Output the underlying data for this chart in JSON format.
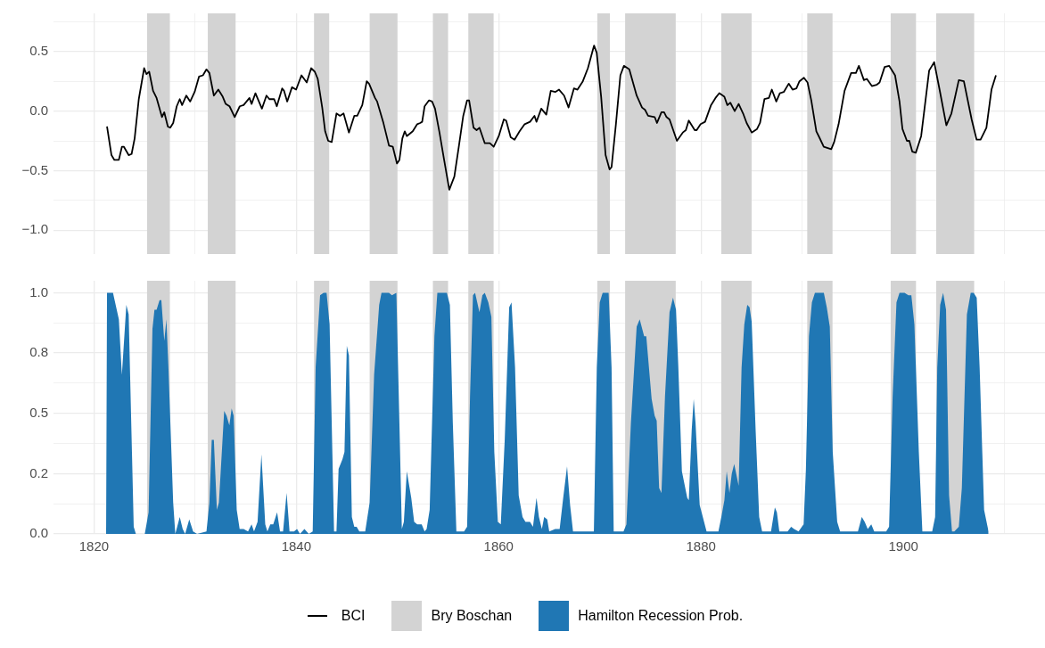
{
  "chart_data": [
    {
      "type": "line",
      "legend": "bottom",
      "grid": true,
      "tick_labels": "y",
      "xlim": [
        1816,
        1914
      ],
      "xticks": [
        1820,
        {
          "value": 1830,
          "label": null
        },
        1840,
        1860,
        1880,
        {
          "value": 1890,
          "label": null
        },
        1900,
        {
          "value": 1910,
          "label": null
        }
      ],
      "ylim": [
        -1.2,
        0.82
      ],
      "yticks": [
        {
          "value": -1.0,
          "label": "−1.0"
        },
        {
          "value": -0.75,
          "label": null
        },
        {
          "value": -0.5,
          "label": "−0.5"
        },
        {
          "value": -0.25,
          "label": null
        },
        {
          "value": 0,
          "label": "0.0"
        },
        {
          "value": 0.25,
          "label": null
        },
        0.5,
        {
          "value": 0.75,
          "label": null
        }
      ],
      "bands": [
        {
          "axis": "x",
          "from": 1825.25,
          "to": 1827.5,
          "label": "Bry Boschan",
          "color": "#d3d3d3"
        },
        {
          "axis": "x",
          "from": 1831.25,
          "to": 1834,
          "color": "#d3d3d3"
        },
        {
          "axis": "x",
          "from": 1841.75,
          "to": 1843.25,
          "color": "#d3d3d3"
        },
        {
          "axis": "x",
          "from": 1847.25,
          "to": 1850,
          "color": "#d3d3d3"
        },
        {
          "axis": "x",
          "from": 1853.5,
          "to": 1855,
          "color": "#d3d3d3"
        },
        {
          "axis": "x",
          "from": 1857,
          "to": 1859.5,
          "color": "#d3d3d3"
        },
        {
          "axis": "x",
          "from": 1869.75,
          "to": 1871,
          "color": "#d3d3d3"
        },
        {
          "axis": "x",
          "from": 1872.5,
          "to": 1877.5,
          "color": "#d3d3d3"
        },
        {
          "axis": "x",
          "from": 1882,
          "to": 1885,
          "color": "#d3d3d3"
        },
        {
          "axis": "x",
          "from": 1890.5,
          "to": 1893,
          "color": "#d3d3d3"
        },
        {
          "axis": "x",
          "from": 1898.75,
          "to": 1901.25,
          "color": "#d3d3d3"
        },
        {
          "axis": "x",
          "from": 1903.25,
          "to": 1907,
          "color": "#d3d3d3"
        }
      ],
      "series": [
        {
          "name": "BCI",
          "color": "#000000",
          "line_style": "solid",
          "x": [
            1821.29,
            1821.73,
            1822.02,
            1822.46,
            1822.76,
            1822.96,
            1823.43,
            1823.72,
            1824.02,
            1824.43,
            1824.96,
            1825.19,
            1825.46,
            1825.84,
            1826.19,
            1826.72,
            1826.95,
            1827.3,
            1827.54,
            1827.83,
            1828.18,
            1828.48,
            1828.71,
            1829.13,
            1829.51,
            1829.95,
            1830.39,
            1830.77,
            1831.12,
            1831.41,
            1831.85,
            1832.29,
            1832.73,
            1833.02,
            1833.4,
            1833.91,
            1834.41,
            1834.79,
            1835.37,
            1835.58,
            1835.96,
            1836.6,
            1837.05,
            1837.34,
            1837.81,
            1838.07,
            1838.6,
            1838.79,
            1839.1,
            1839.57,
            1839.98,
            1840.51,
            1841.03,
            1841.47,
            1841.83,
            1842.12,
            1842.56,
            1842.85,
            1843.15,
            1843.5,
            1843.97,
            1844.32,
            1844.67,
            1845.2,
            1845.73,
            1846.02,
            1846.52,
            1846.96,
            1847.19,
            1847.78,
            1847.99,
            1848.58,
            1849.16,
            1849.54,
            1849.95,
            1850.19,
            1850.48,
            1850.72,
            1850.92,
            1851.51,
            1851.95,
            1852.24,
            1852.44,
            1852.68,
            1853.12,
            1853.42,
            1853.71,
            1854.15,
            1854.59,
            1855.12,
            1855.62,
            1856.06,
            1856.5,
            1856.88,
            1857.08,
            1857.52,
            1857.82,
            1858.1,
            1858.63,
            1859.13,
            1859.51,
            1860.01,
            1860.51,
            1860.74,
            1861.19,
            1861.57,
            1862.07,
            1862.57,
            1863.1,
            1863.54,
            1863.74,
            1864.21,
            1864.71,
            1865.15,
            1865.59,
            1865.97,
            1866.47,
            1866.91,
            1867.44,
            1867.79,
            1868.32,
            1868.82,
            1869.43,
            1869.69,
            1870.13,
            1870.57,
            1870.96,
            1871.16,
            1871.59,
            1872.03,
            1872.38,
            1872.91,
            1873.64,
            1874.17,
            1874.47,
            1874.77,
            1875.42,
            1875.65,
            1876.09,
            1876.35,
            1876.59,
            1876.89,
            1877.62,
            1878.2,
            1878.5,
            1878.79,
            1879.38,
            1879.57,
            1879.96,
            1880.4,
            1880.99,
            1881.43,
            1881.81,
            1882.31,
            1882.6,
            1882.9,
            1883.33,
            1883.72,
            1884.16,
            1884.51,
            1885.01,
            1885.54,
            1885.83,
            1886.27,
            1886.71,
            1887.0,
            1887.44,
            1887.79,
            1888.18,
            1888.67,
            1889.05,
            1889.43,
            1889.73,
            1890.17,
            1890.53,
            1890.9,
            1891.4,
            1891.69,
            1892.13,
            1892.87,
            1893.16,
            1893.6,
            1894.19,
            1894.84,
            1895.31,
            1895.6,
            1896.1,
            1896.39,
            1896.89,
            1897.35,
            1897.65,
            1898.15,
            1898.59,
            1899.18,
            1899.62,
            1899.91,
            1900.35,
            1900.59,
            1900.88,
            1901.23,
            1901.76,
            1902.55,
            1903.05,
            1903.58,
            1904.25,
            1904.75,
            1905.48,
            1905.98,
            1906.75,
            1907.24,
            1907.63,
            1908.21,
            1908.71,
            1909.15
          ],
          "values": [
            -0.13,
            -0.37,
            -0.41,
            -0.41,
            -0.3,
            -0.3,
            -0.37,
            -0.36,
            -0.23,
            0.1,
            0.36,
            0.31,
            0.33,
            0.17,
            0.11,
            -0.05,
            -0.01,
            -0.13,
            -0.14,
            -0.1,
            0.04,
            0.1,
            0.05,
            0.13,
            0.08,
            0.16,
            0.29,
            0.3,
            0.35,
            0.32,
            0.13,
            0.18,
            0.12,
            0.06,
            0.04,
            -0.05,
            0.04,
            0.05,
            0.11,
            0.06,
            0.15,
            0.02,
            0.13,
            0.1,
            0.1,
            0.04,
            0.19,
            0.17,
            0.08,
            0.2,
            0.18,
            0.3,
            0.24,
            0.36,
            0.33,
            0.27,
            0.03,
            -0.17,
            -0.25,
            -0.26,
            -0.02,
            -0.04,
            -0.02,
            -0.18,
            -0.04,
            -0.04,
            0.05,
            0.25,
            0.23,
            0.11,
            0.08,
            -0.09,
            -0.29,
            -0.3,
            -0.44,
            -0.41,
            -0.23,
            -0.17,
            -0.21,
            -0.17,
            -0.11,
            -0.1,
            -0.09,
            0.04,
            0.09,
            0.08,
            0.02,
            -0.18,
            -0.4,
            -0.66,
            -0.55,
            -0.3,
            -0.04,
            0.09,
            0.09,
            -0.14,
            -0.16,
            -0.14,
            -0.27,
            -0.27,
            -0.3,
            -0.21,
            -0.07,
            -0.08,
            -0.22,
            -0.24,
            -0.17,
            -0.11,
            -0.09,
            -0.04,
            -0.09,
            0.02,
            -0.03,
            0.17,
            0.16,
            0.18,
            0.13,
            0.03,
            0.19,
            0.18,
            0.25,
            0.36,
            0.55,
            0.49,
            0.12,
            -0.37,
            -0.49,
            -0.47,
            -0.11,
            0.3,
            0.38,
            0.35,
            0.13,
            0.03,
            0.01,
            -0.04,
            -0.05,
            -0.1,
            -0.01,
            -0.01,
            -0.05,
            -0.07,
            -0.25,
            -0.18,
            -0.16,
            -0.08,
            -0.16,
            -0.16,
            -0.11,
            -0.09,
            0.05,
            0.11,
            0.15,
            0.12,
            0.05,
            0.07,
            0.0,
            0.06,
            -0.02,
            -0.1,
            -0.18,
            -0.15,
            -0.1,
            0.1,
            0.11,
            0.18,
            0.08,
            0.15,
            0.16,
            0.23,
            0.18,
            0.19,
            0.25,
            0.28,
            0.24,
            0.09,
            -0.17,
            -0.22,
            -0.3,
            -0.32,
            -0.26,
            -0.11,
            0.17,
            0.32,
            0.32,
            0.38,
            0.26,
            0.27,
            0.21,
            0.22,
            0.24,
            0.37,
            0.38,
            0.3,
            0.08,
            -0.15,
            -0.25,
            -0.25,
            -0.34,
            -0.35,
            -0.21,
            0.34,
            0.41,
            0.18,
            -0.12,
            -0.02,
            0.26,
            0.25,
            -0.07,
            -0.24,
            -0.24,
            -0.14,
            0.18,
            0.3
          ]
        }
      ]
    },
    {
      "type": "area",
      "legend": "bottom",
      "grid": true,
      "xlim": [
        1816,
        1914
      ],
      "xticks": [
        1820,
        {
          "value": 1830,
          "label": null
        },
        1840,
        1860,
        1880,
        {
          "value": 1890,
          "label": null
        },
        1900,
        {
          "value": 1910,
          "label": null
        }
      ],
      "ylim": [
        0,
        1.05
      ],
      "yticks": [
        {
          "value": 0,
          "label": "0.0"
        },
        {
          "value": 0.125,
          "label": null
        },
        {
          "value": 0.25,
          "label": "0.2"
        },
        {
          "value": 0.375,
          "label": null
        },
        0.5,
        {
          "value": 0.625,
          "label": null
        },
        {
          "value": 0.75,
          "label": "0.8"
        },
        {
          "value": 0.875,
          "label": null
        },
        {
          "value": 1.0,
          "label": "1.0"
        }
      ],
      "bands": [
        {
          "axis": "x",
          "from": 1825.25,
          "to": 1827.5,
          "color": "#d3d3d3"
        },
        {
          "axis": "x",
          "from": 1831.25,
          "to": 1834,
          "color": "#d3d3d3"
        },
        {
          "axis": "x",
          "from": 1841.75,
          "to": 1843.25,
          "color": "#d3d3d3"
        },
        {
          "axis": "x",
          "from": 1847.25,
          "to": 1850,
          "color": "#d3d3d3"
        },
        {
          "axis": "x",
          "from": 1853.5,
          "to": 1855,
          "color": "#d3d3d3"
        },
        {
          "axis": "x",
          "from": 1857,
          "to": 1859.5,
          "color": "#d3d3d3"
        },
        {
          "axis": "x",
          "from": 1869.75,
          "to": 1871,
          "color": "#d3d3d3"
        },
        {
          "axis": "x",
          "from": 1872.5,
          "to": 1877.5,
          "color": "#d3d3d3"
        },
        {
          "axis": "x",
          "from": 1882,
          "to": 1885,
          "color": "#d3d3d3"
        },
        {
          "axis": "x",
          "from": 1890.5,
          "to": 1893,
          "color": "#d3d3d3"
        },
        {
          "axis": "x",
          "from": 1898.75,
          "to": 1901.25,
          "color": "#d3d3d3"
        },
        {
          "axis": "x",
          "from": 1903.25,
          "to": 1907,
          "color": "#d3d3d3"
        }
      ],
      "series": [
        {
          "name": "Hamilton Recession Prob.",
          "color": "#2077b4",
          "x": [
            1821.2,
            1821.29,
            1821.88,
            1822.46,
            1822.76,
            1823.2,
            1823.43,
            1823.93,
            1824.14,
            1825.02,
            1825.4,
            1825.78,
            1825.98,
            1826.19,
            1826.48,
            1826.66,
            1826.95,
            1827.16,
            1827.36,
            1827.83,
            1828.04,
            1828.48,
            1828.77,
            1829.01,
            1829.42,
            1829.8,
            1830.19,
            1831.12,
            1831.41,
            1831.64,
            1831.85,
            1832.15,
            1832.35,
            1832.87,
            1833.11,
            1833.38,
            1833.61,
            1833.81,
            1834.11,
            1834.4,
            1834.79,
            1835.23,
            1835.58,
            1835.82,
            1836.17,
            1836.55,
            1836.93,
            1837.14,
            1837.43,
            1837.72,
            1838.1,
            1838.39,
            1838.69,
            1839.04,
            1839.33,
            1839.77,
            1840.07,
            1840.36,
            1840.8,
            1841.24,
            1841.62,
            1841.91,
            1842.35,
            1842.7,
            1842.99,
            1843.29,
            1843.5,
            1843.73,
            1843.97,
            1844.18,
            1844.56,
            1844.76,
            1844.99,
            1845.2,
            1845.49,
            1845.73,
            1845.96,
            1846.23,
            1846.81,
            1847.25,
            1847.69,
            1848.19,
            1848.42,
            1848.86,
            1849.16,
            1849.45,
            1849.89,
            1850.19,
            1850.43,
            1850.63,
            1850.92,
            1851.36,
            1851.65,
            1851.95,
            1852.39,
            1852.68,
            1852.88,
            1853.18,
            1853.65,
            1853.94,
            1854.88,
            1855.18,
            1855.47,
            1855.82,
            1856.58,
            1856.88,
            1857.17,
            1857.46,
            1857.67,
            1858.1,
            1858.39,
            1858.63,
            1858.98,
            1859.28,
            1859.57,
            1859.92,
            1860.21,
            1860.6,
            1861.04,
            1861.27,
            1861.62,
            1861.98,
            1862.36,
            1862.65,
            1863.1,
            1863.39,
            1863.74,
            1863.98,
            1864.27,
            1864.5,
            1864.8,
            1865.0,
            1865.59,
            1866.03,
            1866.38,
            1866.76,
            1867.06,
            1867.35,
            1867.73,
            1868.09,
            1869.41,
            1869.7,
            1869.99,
            1870.28,
            1870.87,
            1871.16,
            1871.37,
            1872.34,
            1872.63,
            1873.07,
            1873.64,
            1873.94,
            1874.38,
            1874.59,
            1875.12,
            1875.42,
            1875.62,
            1875.86,
            1876.09,
            1876.44,
            1876.89,
            1877.23,
            1877.53,
            1877.76,
            1878.11,
            1878.64,
            1878.79,
            1879.08,
            1879.28,
            1879.46,
            1879.87,
            1880.55,
            1880.99,
            1881.72,
            1882.01,
            1882.31,
            1882.54,
            1882.81,
            1883.04,
            1883.28,
            1883.48,
            1883.72,
            1884.01,
            1884.28,
            1884.57,
            1884.8,
            1885.01,
            1885.4,
            1885.75,
            1886.04,
            1886.51,
            1886.92,
            1887.3,
            1887.5,
            1887.74,
            1888.18,
            1888.56,
            1888.91,
            1889.2,
            1889.64,
            1890.14,
            1890.37,
            1890.67,
            1890.96,
            1891.26,
            1891.7,
            1892.14,
            1892.43,
            1892.73,
            1893.02,
            1893.46,
            1893.75,
            1895.07,
            1895.51,
            1895.89,
            1896.18,
            1896.48,
            1896.83,
            1897.12,
            1897.71,
            1898.3,
            1898.59,
            1898.94,
            1899.32,
            1899.62,
            1900.12,
            1900.5,
            1900.79,
            1901.09,
            1901.53,
            1901.88,
            1902.85,
            1903.14,
            1903.35,
            1903.64,
            1903.93,
            1904.22,
            1904.52,
            1904.81,
            1905.04,
            1905.48,
            1905.78,
            1906.28,
            1906.66,
            1906.95,
            1907.25,
            1907.54,
            1907.98,
            1908.42
          ],
          "values": [
            0,
            1.0,
            1.0,
            0.89,
            0.66,
            0.95,
            0.91,
            0.03,
            0,
            0,
            0.09,
            0.85,
            0.93,
            0.93,
            0.97,
            0.97,
            0.8,
            0.89,
            0.69,
            0.13,
            0,
            0.07,
            0.02,
            0,
            0.06,
            0.01,
            0,
            0.01,
            0.13,
            0.39,
            0.39,
            0.1,
            0.13,
            0.51,
            0.49,
            0.45,
            0.52,
            0.49,
            0.1,
            0.02,
            0.02,
            0.01,
            0.04,
            0.01,
            0.05,
            0.33,
            0.04,
            0.01,
            0.04,
            0.04,
            0.09,
            0.01,
            0.01,
            0.17,
            0.01,
            0.01,
            0.02,
            0,
            0.02,
            0,
            0.01,
            0.69,
            0.99,
            1.0,
            1.0,
            0.87,
            0.46,
            0.01,
            0.01,
            0.27,
            0.31,
            0.34,
            0.78,
            0.74,
            0.07,
            0.03,
            0.03,
            0.01,
            0.01,
            0.13,
            0.66,
            0.95,
            1.0,
            1.0,
            1.0,
            0.99,
            1.0,
            0.46,
            0.02,
            0.05,
            0.26,
            0.15,
            0.05,
            0.04,
            0.04,
            0.01,
            0.02,
            0.1,
            0.82,
            1.0,
            1.0,
            0.95,
            0.46,
            0.01,
            0.01,
            0.03,
            0.57,
            0.99,
            1.0,
            0.92,
            0.99,
            1.0,
            0.96,
            0.9,
            0.34,
            0.05,
            0.04,
            0.39,
            0.94,
            0.96,
            0.69,
            0.16,
            0.07,
            0.05,
            0.05,
            0.03,
            0.15,
            0.07,
            0.02,
            0.07,
            0.06,
            0.01,
            0.02,
            0.02,
            0.15,
            0.28,
            0.12,
            0.01,
            0.01,
            0.01,
            0.01,
            0.69,
            0.96,
            1.0,
            1.0,
            0.69,
            0.01,
            0.01,
            0.04,
            0.46,
            0.86,
            0.89,
            0.82,
            0.82,
            0.56,
            0.49,
            0.47,
            0.19,
            0.17,
            0.57,
            0.92,
            0.98,
            0.93,
            0.69,
            0.26,
            0.15,
            0.14,
            0.43,
            0.56,
            0.46,
            0.12,
            0.01,
            0.01,
            0.01,
            0.07,
            0.14,
            0.26,
            0.17,
            0.25,
            0.29,
            0.25,
            0.2,
            0.69,
            0.87,
            0.95,
            0.94,
            0.88,
            0.43,
            0.07,
            0.01,
            0.01,
            0.01,
            0.11,
            0.09,
            0.01,
            0.01,
            0.01,
            0.03,
            0.02,
            0.01,
            0.04,
            0.27,
            0.82,
            0.96,
            1.0,
            1.0,
            1.0,
            0.94,
            0.86,
            0.34,
            0.05,
            0.01,
            0.01,
            0.01,
            0.07,
            0.05,
            0.02,
            0.04,
            0.01,
            0.01,
            0.01,
            0.03,
            0.57,
            0.96,
            1.0,
            1.0,
            0.99,
            0.99,
            0.87,
            0.34,
            0.01,
            0.01,
            0.07,
            0.69,
            0.95,
            1.0,
            0.93,
            0.16,
            0.01,
            0.01,
            0.03,
            0.19,
            0.91,
            1.0,
            1.0,
            0.98,
            0.69,
            0.1,
            0.01
          ]
        }
      ]
    }
  ]
}
